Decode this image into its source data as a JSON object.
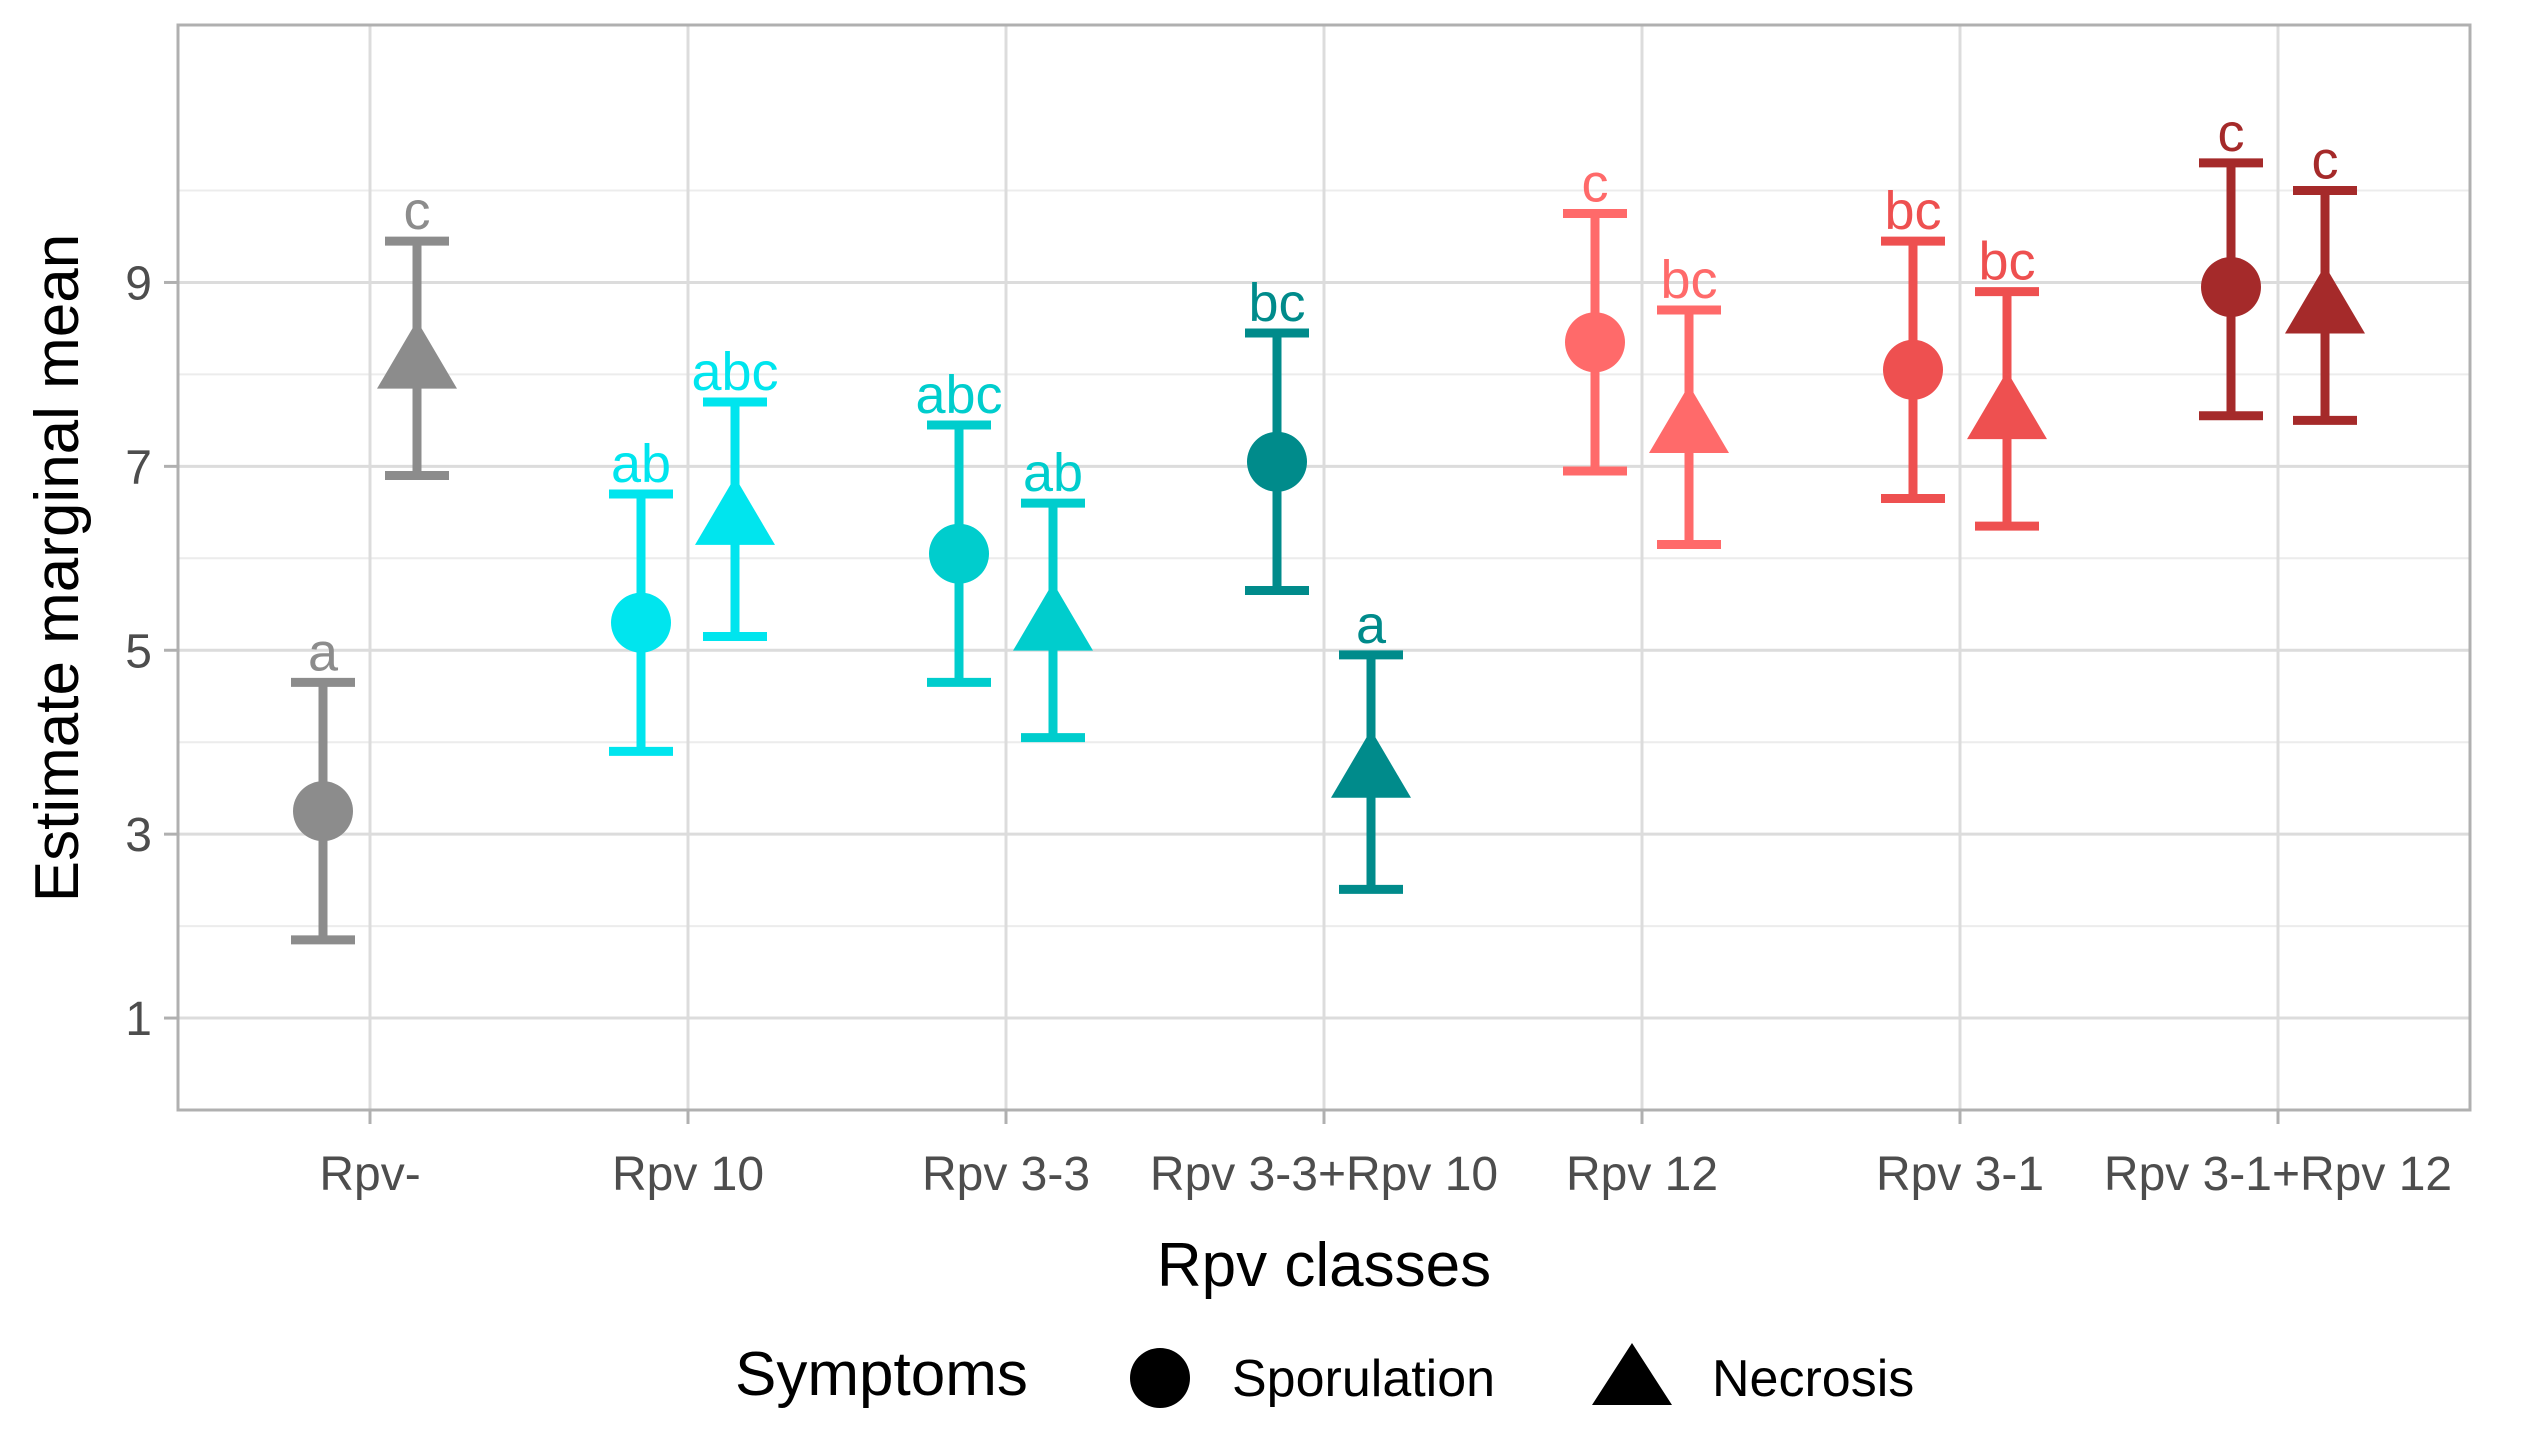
{
  "chart_data": {
    "type": "scatter",
    "subtype": "point-with-error-bars",
    "title": "",
    "xlabel": "Rpv classes",
    "ylabel": "Estimate marginal mean",
    "ylim": [
      0,
      11.8
    ],
    "yticks": [
      1,
      3,
      5,
      7,
      9
    ],
    "grid": true,
    "legend": {
      "title": "Symptoms",
      "position": "bottom",
      "entries": [
        {
          "name": "Sporulation",
          "shape": "circle"
        },
        {
          "name": "Necrosis",
          "shape": "triangle"
        }
      ]
    },
    "categories": [
      "Rpv-",
      "Rpv 10",
      "Rpv 3-3",
      "Rpv 3-3+Rpv 10",
      "Rpv 12",
      "Rpv 3-1",
      "Rpv 3-1+Rpv 12"
    ],
    "category_colors": [
      "#8c8c8c",
      "#00e5ee",
      "#00cdcd",
      "#008b8b",
      "#ff6a6a",
      "#ee5050",
      "#a52a2a"
    ],
    "series": [
      {
        "name": "Sporulation",
        "shape": "circle",
        "values": [
          3.25,
          5.3,
          6.05,
          7.05,
          8.35,
          8.05,
          8.95
        ],
        "lower": [
          1.85,
          3.9,
          4.65,
          5.65,
          6.95,
          6.65,
          7.55
        ],
        "upper": [
          4.65,
          6.7,
          7.45,
          8.45,
          9.75,
          9.45,
          10.3
        ],
        "letters": [
          "a",
          "ab",
          "abc",
          "bc",
          "c",
          "bc",
          "c"
        ]
      },
      {
        "name": "Necrosis",
        "shape": "triangle",
        "values": [
          8.15,
          6.45,
          5.3,
          3.7,
          7.45,
          7.6,
          8.75
        ],
        "lower": [
          6.9,
          5.15,
          4.05,
          2.4,
          6.15,
          6.35,
          7.5
        ],
        "upper": [
          9.45,
          7.7,
          6.6,
          4.95,
          8.7,
          8.9,
          10.0
        ],
        "letters": [
          "c",
          "abc",
          "ab",
          "a",
          "bc",
          "bc",
          "c"
        ]
      }
    ]
  }
}
